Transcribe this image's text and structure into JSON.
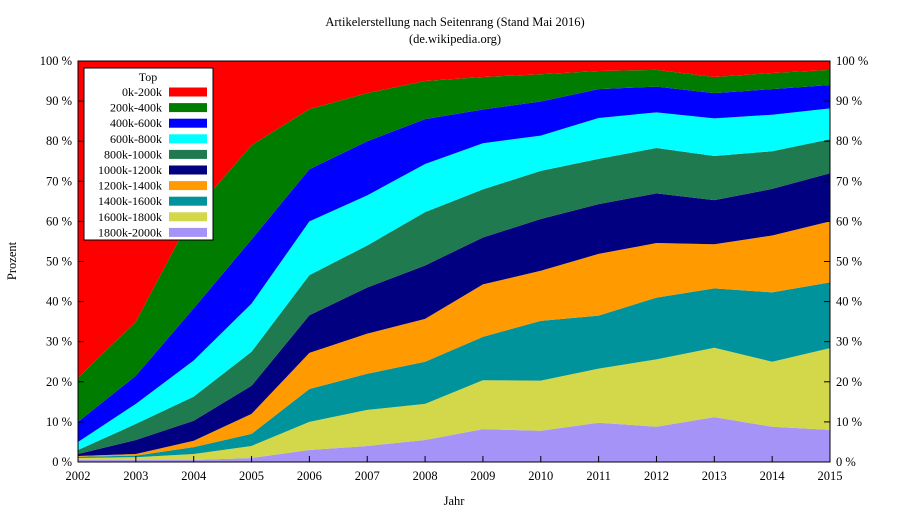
{
  "chart_data": {
    "type": "area",
    "stacked": true,
    "title": "Artikelerstellung nach Seitenrang (Stand Mai 2016)",
    "subtitle": "(de.wikipedia.org)",
    "xlabel": "Jahr",
    "ylabel": "Prozent",
    "x": [
      2002,
      2003,
      2004,
      2005,
      2006,
      2007,
      2008,
      2009,
      2010,
      2011,
      2012,
      2013,
      2014,
      2015
    ],
    "xticks": [
      "2002",
      "2003",
      "2004",
      "2005",
      "2006",
      "2007",
      "2008",
      "2009",
      "2010",
      "2011",
      "2012",
      "2013",
      "2014",
      "2015"
    ],
    "ylim": [
      0,
      100
    ],
    "yticks": [
      "0 %",
      "10 %",
      "20 %",
      "30 %",
      "40 %",
      "50 %",
      "60 %",
      "70 %",
      "80 %",
      "90 %",
      "100 %"
    ],
    "legend": {
      "title": "Top",
      "position": "top-left"
    },
    "series": [
      {
        "name": "1800k-2000k",
        "color": "#a593f7",
        "values": [
          0.5,
          0.5,
          0.5,
          1.0,
          3.0,
          4.0,
          5.5,
          8.2,
          7.8,
          9.8,
          8.8,
          11.2,
          8.8,
          8.0
        ]
      },
      {
        "name": "1600k-1800k",
        "color": "#d3d74a",
        "values": [
          0.5,
          0.7,
          1.5,
          3.0,
          7.0,
          9.0,
          9.0,
          12.2,
          12.5,
          13.5,
          16.8,
          17.3,
          16.2,
          20.4
        ]
      },
      {
        "name": "1400k-1600k",
        "color": "#00939b",
        "values": [
          0.3,
          0.4,
          1.7,
          3.0,
          8.2,
          9.0,
          10.5,
          10.8,
          14.9,
          13.2,
          15.4,
          14.8,
          17.3,
          16.4
        ]
      },
      {
        "name": "1200k-1400k",
        "color": "#ff9a00",
        "values": [
          0.2,
          0.4,
          1.6,
          5.0,
          9.0,
          10.0,
          10.7,
          13.1,
          12.5,
          15.4,
          13.6,
          11.0,
          14.2,
          15.2
        ]
      },
      {
        "name": "1000k-1200k",
        "color": "#000080",
        "values": [
          0.5,
          3.5,
          5.0,
          7.0,
          9.4,
          11.5,
          13.3,
          11.7,
          12.9,
          12.4,
          12.4,
          11.0,
          11.6,
          12.0
        ]
      },
      {
        "name": "800k-1000k",
        "color": "#1f7a50",
        "values": [
          1.0,
          4.0,
          6.0,
          8.5,
          10.0,
          10.5,
          13.3,
          12.0,
          12.0,
          11.3,
          11.3,
          11.0,
          9.4,
          8.5
        ]
      },
      {
        "name": "600k-800k",
        "color": "#00ffff",
        "values": [
          2.0,
          5.0,
          9.0,
          12.0,
          13.4,
          12.5,
          12.0,
          11.5,
          8.8,
          10.2,
          8.9,
          9.4,
          9.1,
          7.7
        ]
      },
      {
        "name": "400k-600k",
        "color": "#0000ff",
        "values": [
          5.0,
          7.0,
          13.0,
          16.0,
          13.0,
          13.5,
          11.2,
          8.4,
          8.5,
          7.2,
          6.4,
          6.3,
          6.4,
          5.8
        ]
      },
      {
        "name": "200k-400k",
        "color": "#007d00",
        "values": [
          11.0,
          13.5,
          24.0,
          23.5,
          15.0,
          12.0,
          9.5,
          8.1,
          6.8,
          4.5,
          4.2,
          4.0,
          4.0,
          3.8
        ]
      },
      {
        "name": "0k-200k",
        "color": "#ff0000",
        "values": [
          79.0,
          65.0,
          37.7,
          21.0,
          12.0,
          8.0,
          5.0,
          4.0,
          3.3,
          2.5,
          2.2,
          4.0,
          3.0,
          2.2
        ]
      }
    ]
  }
}
